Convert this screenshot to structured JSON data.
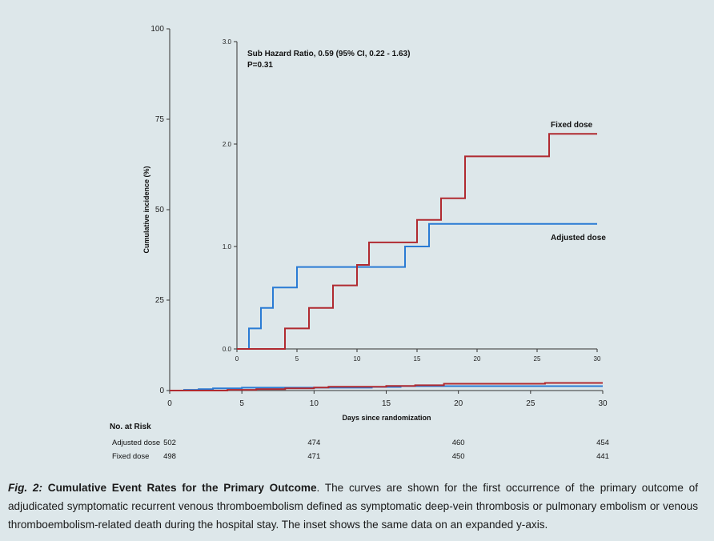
{
  "chart_data": [
    {
      "type": "line",
      "title": "",
      "xlabel": "Days since randomization",
      "ylabel": "Cumulative incidence (%)",
      "xlim": [
        0,
        30
      ],
      "ylim": [
        0,
        100
      ],
      "x_ticks": [
        "0",
        "5",
        "10",
        "15",
        "20",
        "25",
        "30"
      ],
      "y_ticks": [
        "0",
        "25",
        "50",
        "75",
        "100"
      ],
      "series": [
        {
          "name": "Adjusted dose",
          "color": "#2a7bd4",
          "x": [
            0,
            1,
            1,
            2,
            2,
            3,
            3,
            5,
            5,
            14,
            14,
            16,
            16,
            30
          ],
          "y": [
            0,
            0,
            0.2,
            0.2,
            0.4,
            0.4,
            0.6,
            0.6,
            0.8,
            0.8,
            1.0,
            1.0,
            1.22,
            1.22
          ]
        },
        {
          "name": "Fixed dose",
          "color": "#b02a30",
          "x": [
            0,
            4,
            4,
            6,
            6,
            8,
            8,
            10,
            10,
            11,
            11,
            15,
            15,
            17,
            17,
            19,
            19,
            26,
            26,
            30
          ],
          "y": [
            0,
            0,
            0.2,
            0.2,
            0.4,
            0.4,
            0.62,
            0.62,
            0.82,
            0.82,
            1.04,
            1.04,
            1.26,
            1.26,
            1.47,
            1.47,
            1.88,
            1.88,
            2.1,
            2.1
          ]
        }
      ]
    },
    {
      "type": "line",
      "title": "",
      "xlabel": "",
      "ylabel": "",
      "xlim": [
        0,
        30
      ],
      "ylim": [
        0,
        3.0
      ],
      "x_ticks": [
        "0",
        "5",
        "10",
        "15",
        "20",
        "25",
        "30"
      ],
      "y_ticks": [
        "0.0",
        "1.0",
        "2.0",
        "3.0"
      ],
      "annotations": [
        "Sub Hazard Ratio, 0.59 (95% CI, 0.22 - 1.63)",
        "P=0.31"
      ],
      "series": [
        {
          "name": "Adjusted dose",
          "color": "#2a7bd4",
          "x": [
            0,
            1,
            1,
            2,
            2,
            3,
            3,
            5,
            5,
            14,
            14,
            16,
            16,
            30
          ],
          "y": [
            0,
            0,
            0.2,
            0.2,
            0.4,
            0.4,
            0.6,
            0.6,
            0.8,
            0.8,
            1.0,
            1.0,
            1.22,
            1.22
          ]
        },
        {
          "name": "Fixed dose",
          "color": "#b02a30",
          "x": [
            0,
            4,
            4,
            6,
            6,
            8,
            8,
            10,
            10,
            11,
            11,
            15,
            15,
            17,
            17,
            19,
            19,
            26,
            26,
            30
          ],
          "y": [
            0,
            0,
            0.2,
            0.2,
            0.4,
            0.4,
            0.62,
            0.62,
            0.82,
            0.82,
            1.04,
            1.04,
            1.26,
            1.26,
            1.47,
            1.47,
            1.88,
            1.88,
            2.1,
            2.1
          ]
        }
      ]
    }
  ],
  "risk_table": {
    "title": "No. at Risk",
    "days": [
      0,
      10,
      20,
      30
    ],
    "rows": [
      {
        "label": "Adjusted dose",
        "values": [
          "502",
          "474",
          "460",
          "454"
        ]
      },
      {
        "label": "Fixed dose",
        "values": [
          "498",
          "471",
          "450",
          "441"
        ]
      }
    ]
  },
  "caption": {
    "fig_label": "Fig. 2:",
    "title": "Cumulative Event Rates for the Primary Outcome",
    "text": ". The curves are shown for the first occurrence of the primary outcome of adjudicated symptomatic recurrent venous thromboembolism defined as symptomatic deep-vein thrombosis or pulmonary embolism or venous thromboembolism-related death during the hospital stay. The inset shows the same data on an expanded y-axis."
  }
}
